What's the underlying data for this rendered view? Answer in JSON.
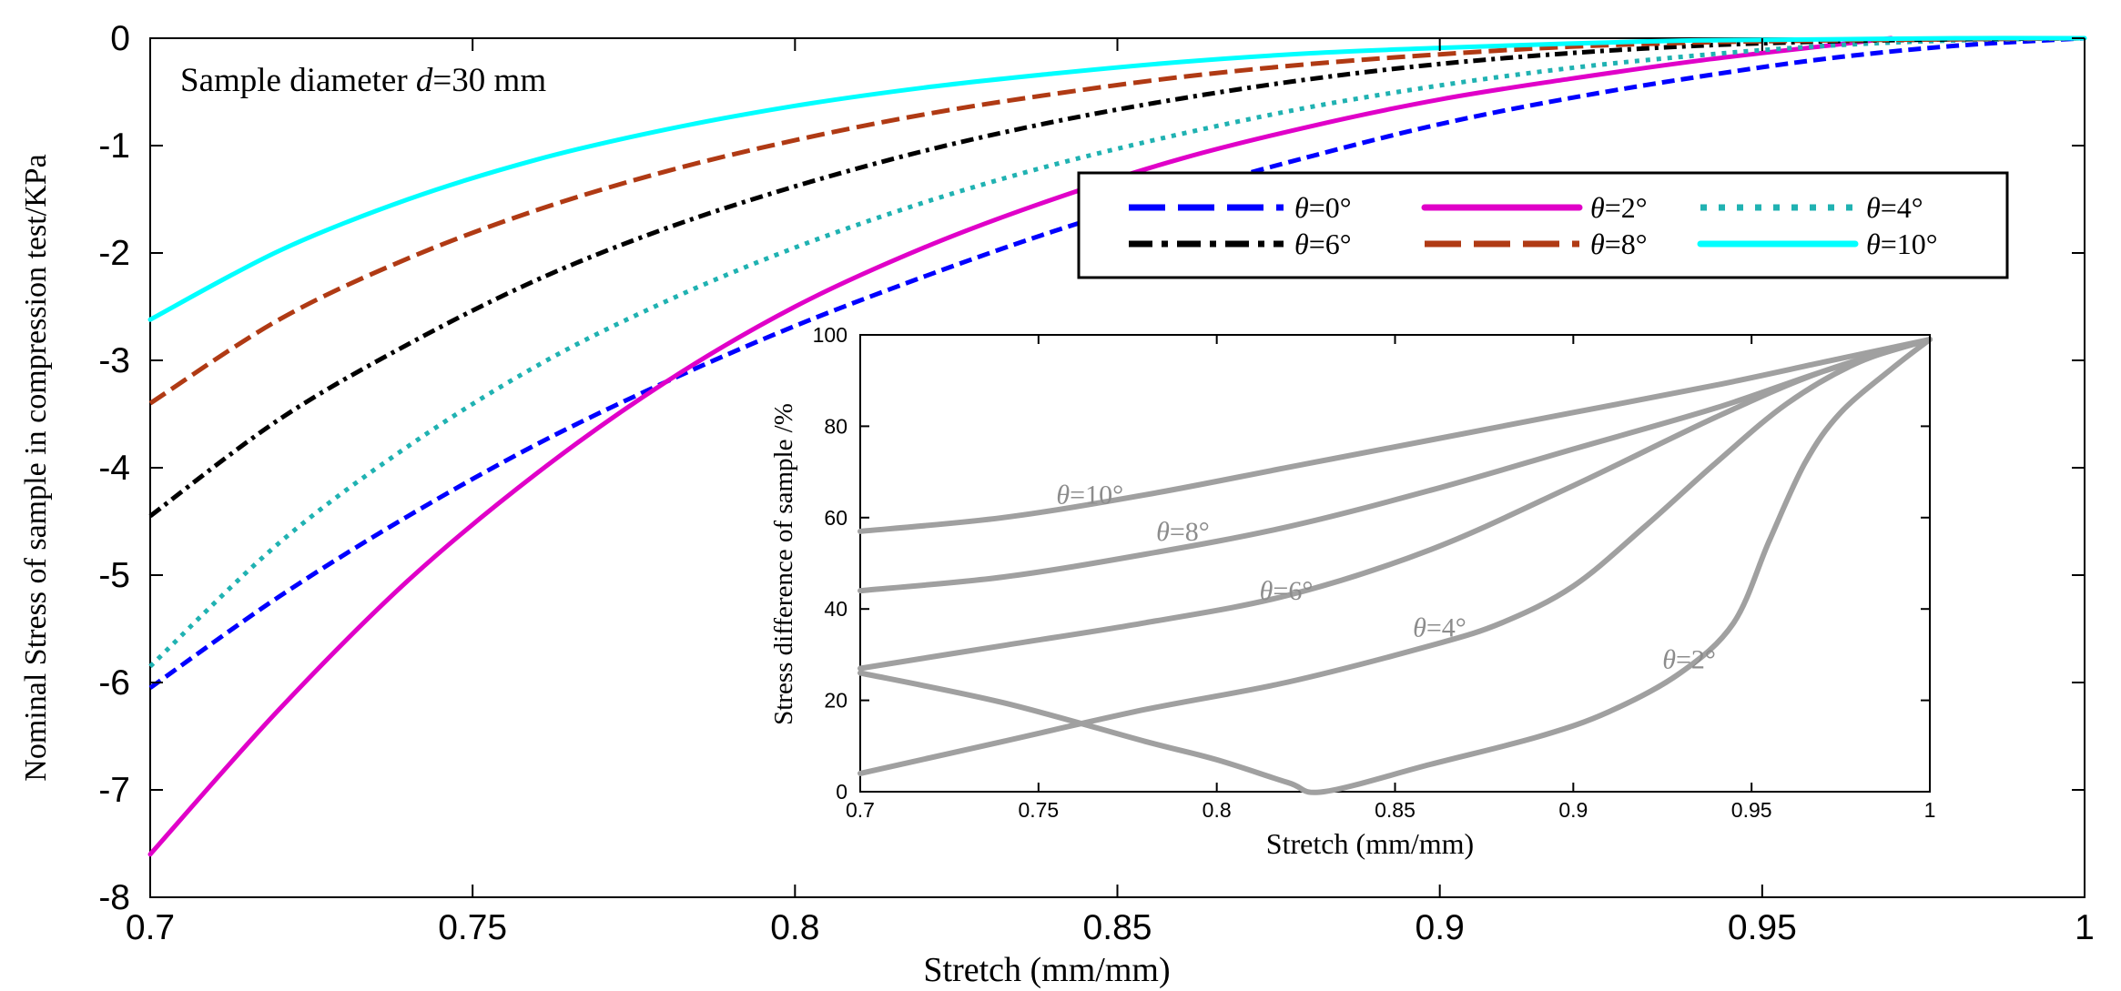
{
  "chart_data": [
    {
      "type": "line",
      "title": "",
      "annotation": {
        "prefix": "Sample diameter ",
        "variable": "d",
        "suffix": "=30 mm"
      },
      "xlabel": "Stretch (mm/mm)",
      "ylabel": "Nominal Stress of sample in compression test/KPa",
      "xlim": [
        0.7,
        1
      ],
      "ylim": [
        -8,
        0
      ],
      "xticks": [
        0.7,
        0.75,
        0.8,
        0.85,
        0.9,
        0.95,
        1
      ],
      "xtick_labels": [
        "0.7",
        "0.75",
        "0.8",
        "0.85",
        "0.9",
        "0.95",
        "1"
      ],
      "yticks": [
        0,
        -1,
        -2,
        -3,
        -4,
        -5,
        -6,
        -7,
        -8
      ],
      "ytick_labels": [
        "0",
        "-1",
        "-2",
        "-3",
        "-4",
        "-5",
        "-6",
        "-7",
        "-8"
      ],
      "grid": false,
      "legend_position": "upper-right",
      "series": [
        {
          "name": "θ=0°",
          "symbol": "θ",
          "label_suffix": "=0°",
          "color": "#0000ff",
          "dash": "dashed",
          "x": [
            0.7,
            0.72,
            0.74,
            0.76,
            0.78,
            0.8,
            0.82,
            0.84,
            0.86,
            0.88,
            0.9,
            0.92,
            0.94,
            0.96,
            0.98,
            1.0
          ],
          "y": [
            -6.05,
            -5.2,
            -4.45,
            -3.78,
            -3.2,
            -2.68,
            -2.22,
            -1.8,
            -1.43,
            -1.1,
            -0.8,
            -0.56,
            -0.36,
            -0.19,
            -0.07,
            0.0
          ]
        },
        {
          "name": "θ=2°",
          "symbol": "θ",
          "label_suffix": "=2°",
          "color": "#e000c8",
          "dash": "solid",
          "x": [
            0.7,
            0.72,
            0.74,
            0.76,
            0.78,
            0.8,
            0.82,
            0.84,
            0.86,
            0.88,
            0.9,
            0.92,
            0.94,
            0.96,
            0.97
          ],
          "y": [
            -7.6,
            -6.25,
            -5.05,
            -4.05,
            -3.2,
            -2.5,
            -1.95,
            -1.5,
            -1.12,
            -0.82,
            -0.57,
            -0.38,
            -0.21,
            -0.07,
            0.0
          ]
        },
        {
          "name": "θ=4°",
          "symbol": "θ",
          "label_suffix": "=4°",
          "color": "#20b2b2",
          "dash": "dotted",
          "x": [
            0.7,
            0.72,
            0.74,
            0.76,
            0.78,
            0.8,
            0.82,
            0.84,
            0.86,
            0.88,
            0.9,
            0.92,
            0.94,
            0.96,
            0.98,
            1.0
          ],
          "y": [
            -5.85,
            -4.7,
            -3.8,
            -3.05,
            -2.45,
            -1.95,
            -1.53,
            -1.18,
            -0.89,
            -0.64,
            -0.44,
            -0.28,
            -0.16,
            -0.07,
            -0.02,
            0.0
          ]
        },
        {
          "name": "θ=6°",
          "symbol": "θ",
          "label_suffix": "=6°",
          "color": "#000000",
          "dash": "dashdot",
          "x": [
            0.7,
            0.72,
            0.74,
            0.76,
            0.78,
            0.8,
            0.82,
            0.84,
            0.86,
            0.88,
            0.9,
            0.92,
            0.94,
            0.96,
            0.98,
            1.0
          ],
          "y": [
            -4.45,
            -3.55,
            -2.85,
            -2.25,
            -1.77,
            -1.38,
            -1.05,
            -0.78,
            -0.56,
            -0.38,
            -0.24,
            -0.14,
            -0.07,
            -0.03,
            -0.01,
            0.0
          ]
        },
        {
          "name": "θ=8°",
          "symbol": "θ",
          "label_suffix": "=8°",
          "color": "#b03a14",
          "dash": "longdash",
          "x": [
            0.7,
            0.72,
            0.74,
            0.76,
            0.78,
            0.8,
            0.82,
            0.84,
            0.86,
            0.88,
            0.9,
            0.92,
            0.94,
            0.96,
            0.98,
            1.0
          ],
          "y": [
            -3.4,
            -2.62,
            -2.05,
            -1.6,
            -1.24,
            -0.95,
            -0.71,
            -0.52,
            -0.36,
            -0.24,
            -0.15,
            -0.08,
            -0.04,
            -0.02,
            -0.01,
            0.0
          ]
        },
        {
          "name": "θ=10°",
          "symbol": "θ",
          "label_suffix": "=10°",
          "color": "#00ffff",
          "dash": "solid",
          "x": [
            0.7,
            0.72,
            0.74,
            0.76,
            0.78,
            0.8,
            0.82,
            0.84,
            0.86,
            0.88,
            0.9,
            0.92,
            0.94,
            0.96,
            0.98,
            1.0
          ],
          "y": [
            -2.62,
            -1.98,
            -1.5,
            -1.13,
            -0.85,
            -0.63,
            -0.46,
            -0.33,
            -0.22,
            -0.14,
            -0.09,
            -0.05,
            -0.02,
            -0.01,
            0.0,
            0.0
          ]
        }
      ]
    },
    {
      "type": "line",
      "role": "inset",
      "title": "",
      "xlabel": "Stretch (mm/mm)",
      "ylabel": "Stress difference of sample /%",
      "xlim": [
        0.7,
        1
      ],
      "ylim": [
        0,
        100
      ],
      "xticks": [
        0.7,
        0.75,
        0.8,
        0.85,
        0.9,
        0.95,
        1
      ],
      "xtick_labels": [
        "0.7",
        "0.75",
        "0.8",
        "0.85",
        "0.9",
        "0.95",
        "1"
      ],
      "yticks": [
        0,
        20,
        40,
        60,
        80,
        100
      ],
      "ytick_labels": [
        "0",
        "20",
        "40",
        "60",
        "80",
        "100"
      ],
      "grid": false,
      "line_color": "#a0a0a0",
      "series": [
        {
          "name": "θ=10°",
          "symbol": "θ",
          "label_suffix": "=10°",
          "label_at": [
            0.755,
            63
          ],
          "x": [
            0.7,
            0.74,
            0.78,
            0.82,
            0.86,
            0.9,
            0.94,
            0.97,
            1.0
          ],
          "y": [
            57,
            60,
            65,
            71,
            77,
            83,
            89,
            94,
            99
          ]
        },
        {
          "name": "θ=8°",
          "symbol": "θ",
          "label_suffix": "=8°",
          "label_at": [
            0.783,
            55
          ],
          "x": [
            0.7,
            0.74,
            0.78,
            0.82,
            0.86,
            0.9,
            0.94,
            0.97,
            1.0
          ],
          "y": [
            44,
            47,
            52,
            58,
            66,
            75,
            84,
            92,
            99
          ]
        },
        {
          "name": "θ=6°",
          "symbol": "θ",
          "label_suffix": "=6°",
          "label_at": [
            0.812,
            42
          ],
          "x": [
            0.7,
            0.74,
            0.78,
            0.82,
            0.86,
            0.9,
            0.94,
            0.97,
            1.0
          ],
          "y": [
            27,
            32,
            37,
            43,
            53,
            67,
            82,
            92,
            99
          ]
        },
        {
          "name": "θ=4°",
          "symbol": "θ",
          "label_suffix": "=4°",
          "label_at": [
            0.855,
            34
          ],
          "x": [
            0.7,
            0.74,
            0.78,
            0.82,
            0.86,
            0.88,
            0.9,
            0.92,
            0.94,
            0.96,
            0.98,
            1.0
          ],
          "y": [
            4,
            11,
            18,
            24,
            32,
            37,
            45,
            58,
            72,
            85,
            94,
            99
          ]
        },
        {
          "name": "θ=2°",
          "symbol": "θ",
          "label_suffix": "=2°",
          "label_at": [
            0.925,
            27
          ],
          "x": [
            0.7,
            0.74,
            0.78,
            0.8,
            0.82,
            0.83,
            0.86,
            0.89,
            0.91,
            0.93,
            0.945,
            0.955,
            0.965,
            0.975,
            0.99,
            1.0
          ],
          "y": [
            26,
            19.5,
            11,
            7,
            2,
            0,
            6,
            12,
            17.5,
            26,
            37,
            55,
            72,
            83,
            93,
            99
          ]
        }
      ]
    }
  ]
}
